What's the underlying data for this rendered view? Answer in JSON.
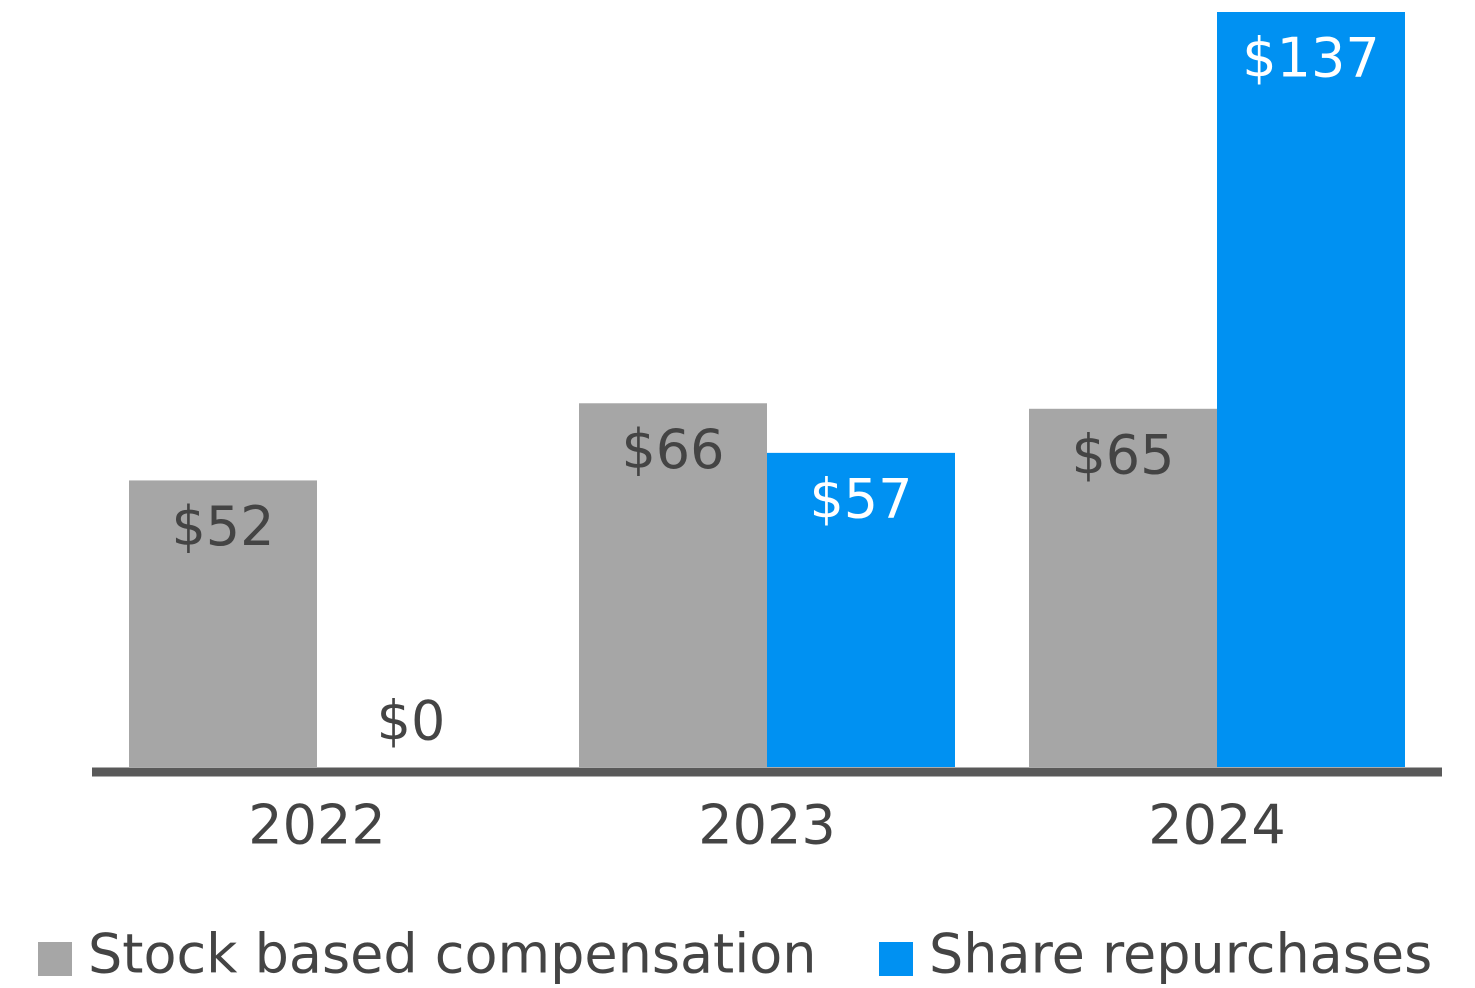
{
  "chart_data": {
    "type": "bar",
    "categories": [
      "2022",
      "2023",
      "2024"
    ],
    "series": [
      {
        "name": "Stock based compensation",
        "color": "#a6a6a6",
        "values": [
          52,
          66,
          65
        ],
        "value_labels": [
          "$52",
          "$66",
          "$65"
        ]
      },
      {
        "name": "Share repurchases",
        "color": "#0091f2",
        "values": [
          0,
          57,
          137
        ],
        "value_labels": [
          "$0",
          "$57",
          "$137"
        ]
      }
    ],
    "ylim": [
      0,
      137
    ]
  }
}
